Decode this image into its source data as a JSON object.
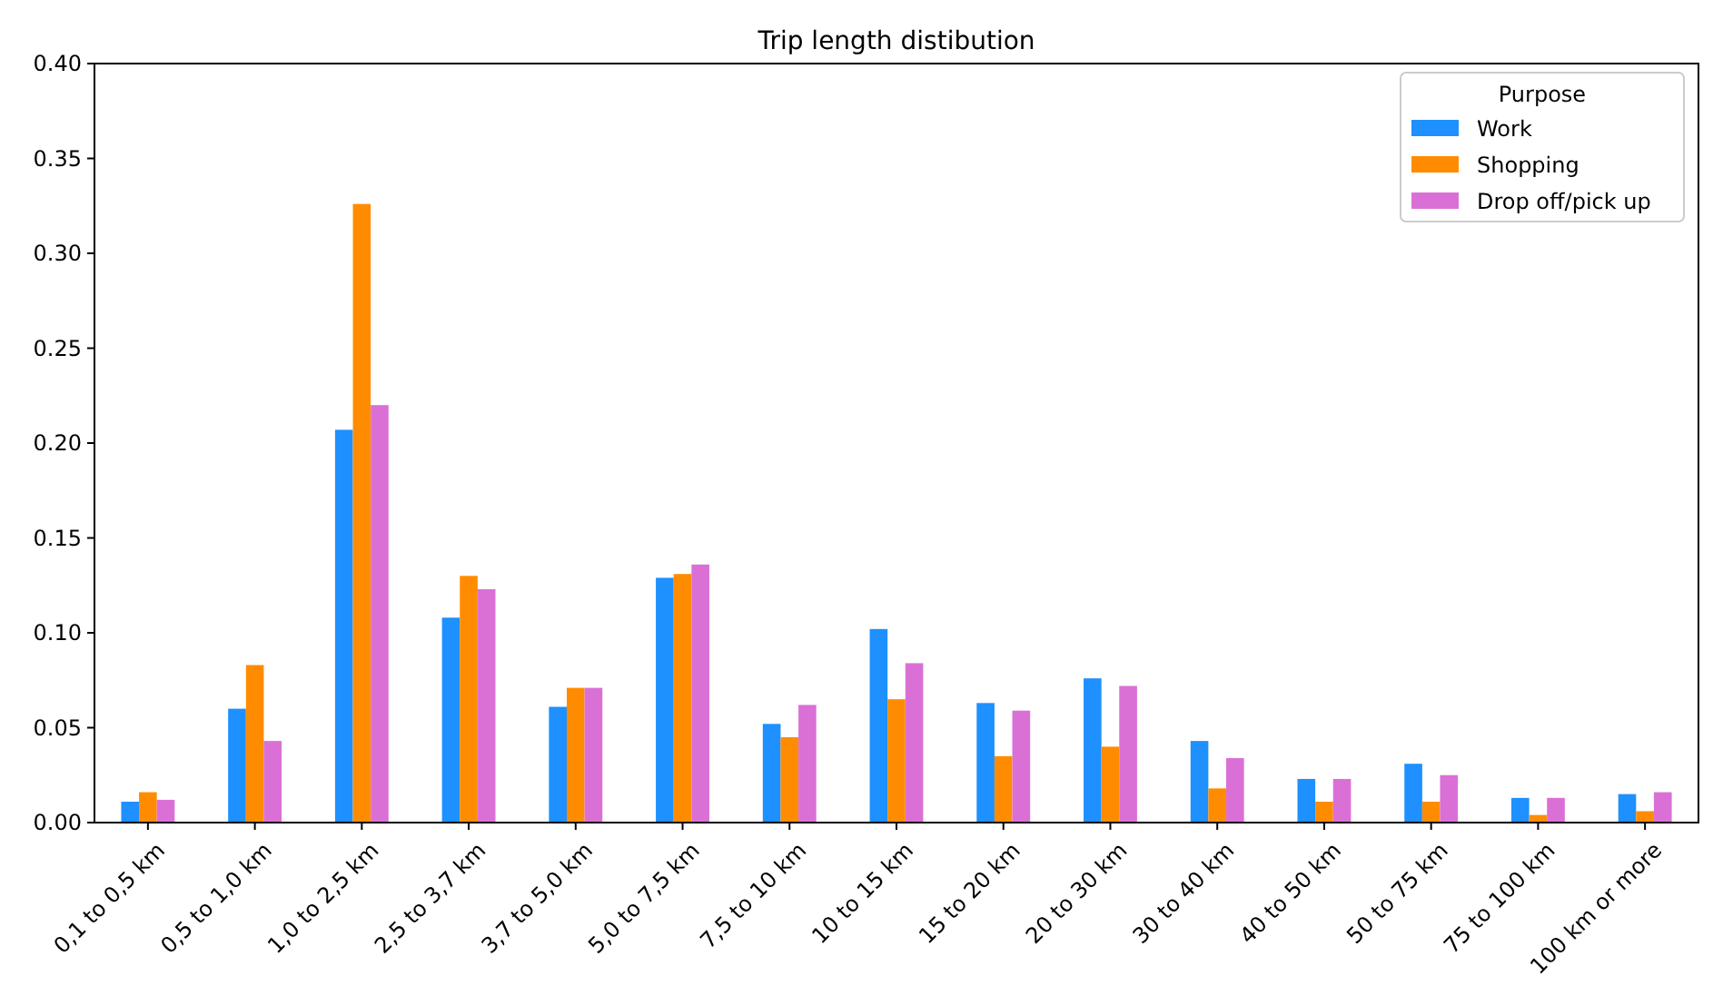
{
  "chart_data": {
    "type": "bar",
    "title": "Trip length distibution",
    "legend_title": "Purpose",
    "legend": "top right",
    "categories": [
      "0,1 to 0,5 km",
      "0,5 to 1,0 km",
      "1,0 to 2,5 km",
      "2,5 to 3,7 km",
      "3,7 to 5,0 km",
      "5,0 to 7,5 km",
      "7,5 to 10 km",
      "10 to 15 km",
      "15 to 20 km",
      "20 to 30 km",
      "30 to 40 km",
      "40 to 50 km",
      "50 to 75 km",
      "75 to 100 km",
      "100 km or more"
    ],
    "series": [
      {
        "name": "Work",
        "color": "#1e90ff",
        "values": [
          0.011,
          0.06,
          0.207,
          0.108,
          0.061,
          0.129,
          0.052,
          0.102,
          0.063,
          0.076,
          0.043,
          0.023,
          0.031,
          0.013,
          0.015
        ]
      },
      {
        "name": "Shopping",
        "color": "#ff8c00",
        "values": [
          0.016,
          0.083,
          0.326,
          0.13,
          0.071,
          0.131,
          0.045,
          0.065,
          0.035,
          0.04,
          0.018,
          0.011,
          0.011,
          0.004,
          0.006
        ]
      },
      {
        "name": "Drop off/pick up",
        "color": "#da70d6",
        "values": [
          0.012,
          0.043,
          0.22,
          0.123,
          0.071,
          0.136,
          0.062,
          0.084,
          0.059,
          0.072,
          0.034,
          0.023,
          0.025,
          0.013,
          0.016
        ]
      }
    ],
    "ylim": [
      0,
      0.4
    ],
    "yticks": [
      {
        "value": 0,
        "label": "0.00"
      },
      {
        "value": 0.05,
        "label": "0.05"
      },
      {
        "value": 0.1,
        "label": "0.10"
      },
      {
        "value": 0.15,
        "label": "0.15"
      },
      {
        "value": 0.2,
        "label": "0.20"
      },
      {
        "value": 0.25,
        "label": "0.25"
      },
      {
        "value": 0.3,
        "label": "0.30"
      },
      {
        "value": 0.35,
        "label": "0.35"
      },
      {
        "value": 0.4,
        "label": "0.40"
      }
    ]
  }
}
